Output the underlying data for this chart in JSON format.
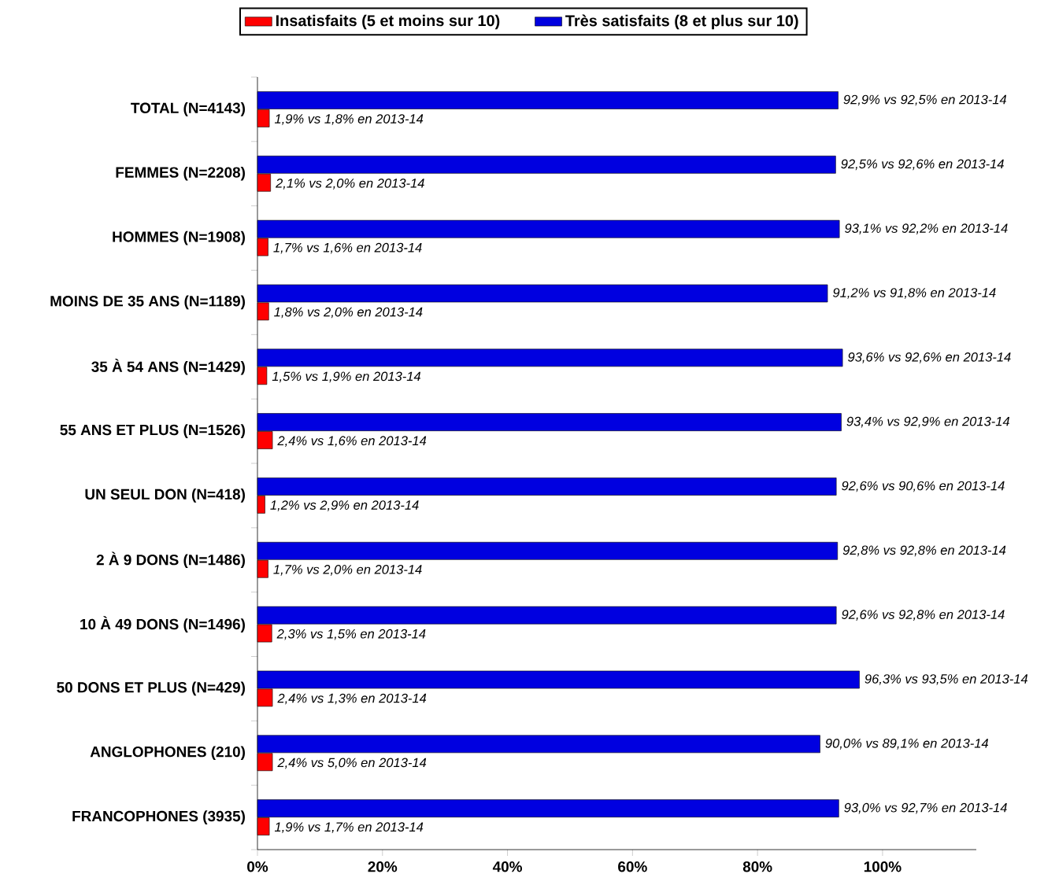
{
  "chart_data": {
    "type": "bar",
    "orientation": "horizontal",
    "categories": [
      "TOTAL (N=4143)",
      "FEMMES (N=2208)",
      "HOMMES (N=1908)",
      "MOINS DE 35 ANS (N=1189)",
      "35 À 54 ANS (N=1429)",
      "55 ANS ET PLUS (N=1526)",
      "UN SEUL DON (N=418)",
      "2 À 9 DONS (N=1486)",
      "10 À 49 DONS (N=1496)",
      "50 DONS ET PLUS (N=429)",
      "ANGLOPHONES (210)",
      "FRANCOPHONES (3935)"
    ],
    "series": [
      {
        "name": "Très satisfaits (8 et plus sur 10)",
        "color": "#0000e0",
        "values": [
          92.9,
          92.5,
          93.1,
          91.2,
          93.6,
          93.4,
          92.6,
          92.8,
          92.6,
          96.3,
          90.0,
          93.0
        ],
        "value_labels": [
          "92,9% vs 92,5% en 2013-14",
          "92,5% vs 92,6% en 2013-14",
          "93,1% vs 92,2% en 2013-14",
          "91,2% vs 91,8% en 2013-14",
          "93,6% vs 92,6% en 2013-14",
          "93,4% vs 92,9% en 2013-14",
          "92,6% vs 90,6% en 2013-14",
          "92,8% vs 92,8% en 2013-14",
          "92,6% vs 92,8% en 2013-14",
          "96,3% vs 93,5% en 2013-14",
          "90,0% vs 89,1% en 2013-14",
          "93,0% vs 92,7% en 2013-14"
        ]
      },
      {
        "name": "Insatisfaits (5 et moins sur 10)",
        "color": "#ff0000",
        "values": [
          1.9,
          2.1,
          1.7,
          1.8,
          1.5,
          2.4,
          1.2,
          1.7,
          2.3,
          2.4,
          2.4,
          1.9
        ],
        "value_labels": [
          "1,9% vs 1,8% en 2013-14",
          "2,1% vs 2,0% en 2013-14",
          "1,7% vs 1,6% en 2013-14",
          "1,8% vs 2,0% en 2013-14",
          "1,5% vs 1,9% en 2013-14",
          "2,4% vs 1,6% en 2013-14",
          "1,2% vs 2,9% en 2013-14",
          "1,7% vs 2,0% en 2013-14",
          "2,3% vs 1,5% en 2013-14",
          "2,4% vs 1,3% en 2013-14",
          "2,4% vs 5,0% en 2013-14",
          "1,9% vs 1,7% en 2013-14"
        ]
      }
    ],
    "xlim": [
      0,
      115
    ],
    "xticks": [
      {
        "value": 0,
        "label": "0%"
      },
      {
        "value": 20,
        "label": "20%"
      },
      {
        "value": 40,
        "label": "40%"
      },
      {
        "value": 60,
        "label": "60%"
      },
      {
        "value": 80,
        "label": "80%"
      },
      {
        "value": 100,
        "label": "100%"
      }
    ],
    "legend": "top"
  }
}
